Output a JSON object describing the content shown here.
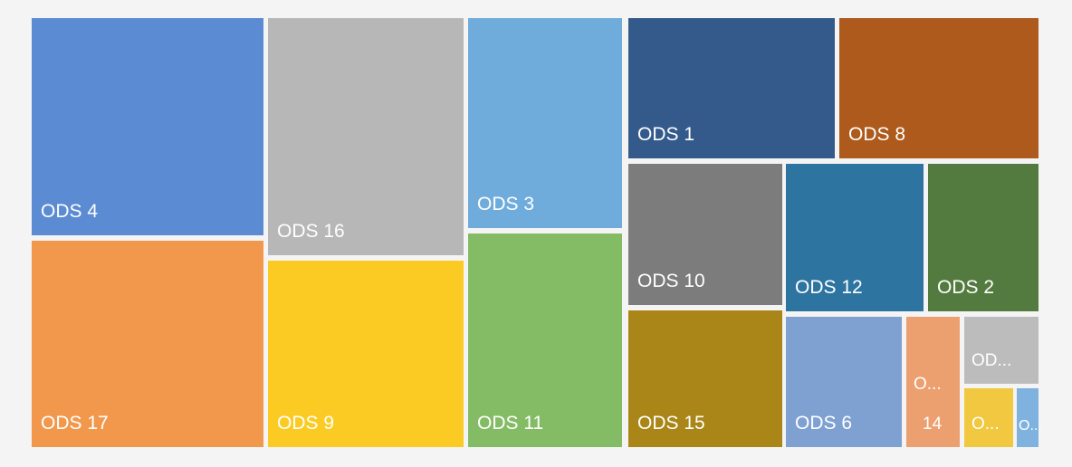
{
  "chart_data": {
    "type": "treemap",
    "title": "",
    "nodes": [
      {
        "label": "ODS 4",
        "color": "#5b8bd2"
      },
      {
        "label": "ODS 17",
        "color": "#f1984d"
      },
      {
        "label": "ODS 16",
        "color": "#b7b7b7"
      },
      {
        "label": "ODS 9",
        "color": "#fbcb24"
      },
      {
        "label": "ODS 3",
        "color": "#70acdb"
      },
      {
        "label": "ODS 11",
        "color": "#84bc66"
      },
      {
        "label": "ODS 1",
        "color": "#345a8b"
      },
      {
        "label": "ODS 8",
        "color": "#ad5a1c"
      },
      {
        "label": "ODS 10",
        "color": "#7c7c7c"
      },
      {
        "label": "ODS 12",
        "color": "#2e74a1"
      },
      {
        "label": "ODS 2",
        "color": "#547b3f"
      },
      {
        "label": "ODS 15",
        "color": "#a98617"
      },
      {
        "label": "ODS 6",
        "color": "#7fa1d2"
      },
      {
        "label": "O...",
        "label2": "14",
        "color": "#eda06f"
      },
      {
        "label": "OD...",
        "color": "#bcbcbc"
      },
      {
        "label": "O...",
        "color": "#f1c83f"
      },
      {
        "label": "O...",
        "color": "#7fb2de"
      }
    ]
  }
}
